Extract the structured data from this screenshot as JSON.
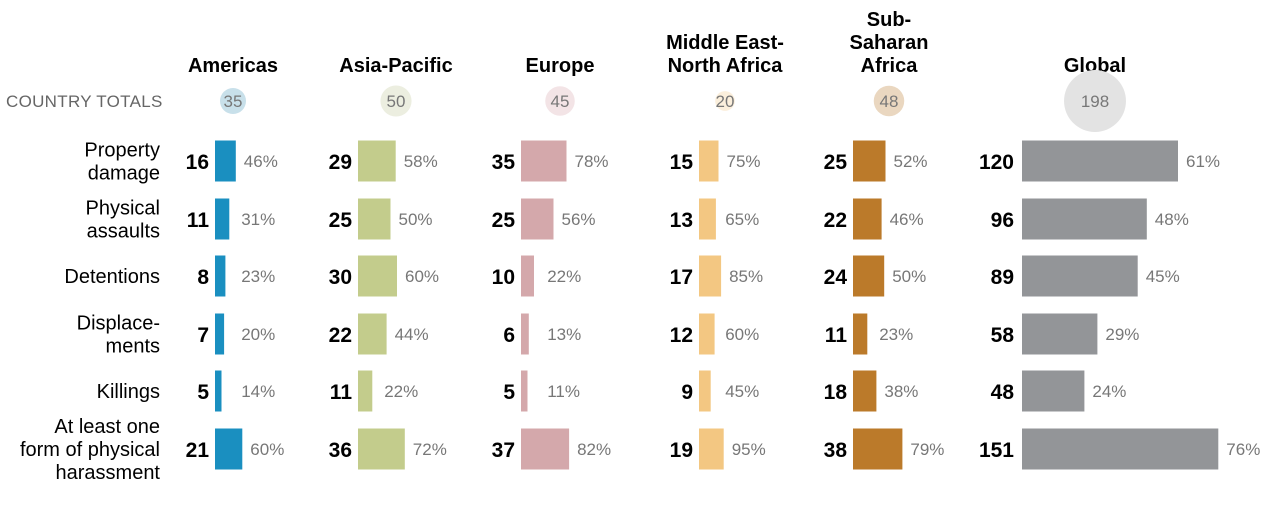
{
  "chart_data": {
    "type": "bar",
    "row_header": "COUNTRY TOTALS",
    "regions": [
      {
        "name": [
          "Americas"
        ],
        "total": 35,
        "color": "#1a8fc0",
        "circle_color": "#c8e0ea"
      },
      {
        "name": [
          "Asia-Pacific"
        ],
        "total": 50,
        "color": "#c3cc8c",
        "circle_color": "#eceee0"
      },
      {
        "name": [
          "Europe"
        ],
        "total": 45,
        "color": "#d4a8ab",
        "circle_color": "#f3e4e6"
      },
      {
        "name": [
          "Middle East-",
          "North Africa"
        ],
        "total": 20,
        "color": "#f3c782",
        "circle_color": "#fbefdc"
      },
      {
        "name": [
          "Sub-",
          "Saharan",
          "Africa"
        ],
        "total": 48,
        "color": "#bb7a2a",
        "circle_color": "#ead7c0"
      },
      {
        "name": [
          "Global"
        ],
        "total": 198,
        "color": "#939598",
        "circle_color": "#e3e3e3"
      }
    ],
    "categories": [
      [
        "Property",
        "damage"
      ],
      [
        "Physical",
        "assaults"
      ],
      [
        "Detentions"
      ],
      [
        "Displace-",
        "ments"
      ],
      [
        "Killings"
      ],
      [
        "At least one",
        "form of physical",
        "harassment"
      ]
    ],
    "counts": [
      [
        16,
        29,
        35,
        15,
        25,
        120
      ],
      [
        11,
        25,
        25,
        13,
        22,
        96
      ],
      [
        8,
        30,
        10,
        17,
        24,
        89
      ],
      [
        7,
        22,
        6,
        12,
        11,
        58
      ],
      [
        5,
        11,
        5,
        9,
        18,
        48
      ],
      [
        21,
        36,
        37,
        19,
        38,
        151
      ]
    ],
    "percents": [
      [
        "46%",
        "58%",
        "78%",
        "75%",
        "52%",
        "61%"
      ],
      [
        "31%",
        "50%",
        "56%",
        "65%",
        "46%",
        "48%"
      ],
      [
        "23%",
        "60%",
        "22%",
        "85%",
        "50%",
        "45%"
      ],
      [
        "20%",
        "44%",
        "13%",
        "60%",
        "23%",
        "29%"
      ],
      [
        "14%",
        "22%",
        "11%",
        "45%",
        "38%",
        "24%"
      ],
      [
        "60%",
        "72%",
        "82%",
        "95%",
        "79%",
        "76%"
      ]
    ]
  }
}
